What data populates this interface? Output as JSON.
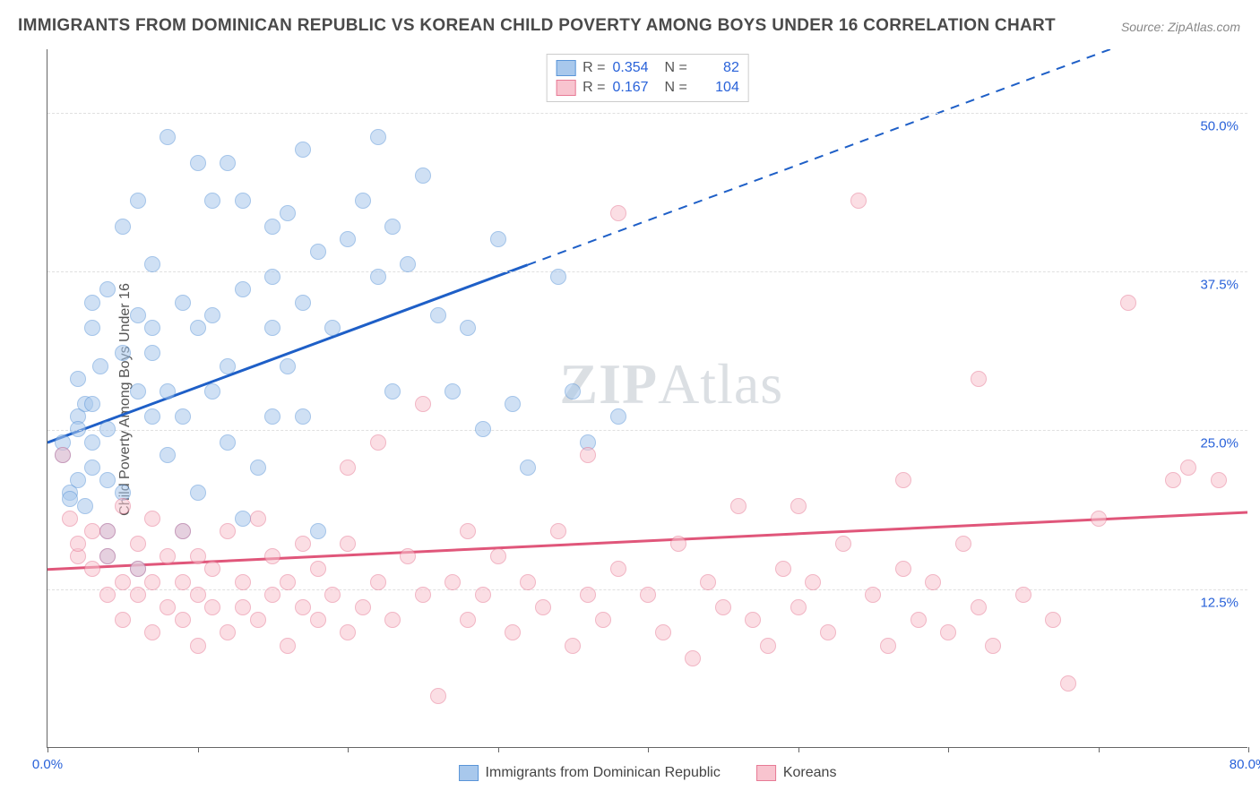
{
  "title": "IMMIGRANTS FROM DOMINICAN REPUBLIC VS KOREAN CHILD POVERTY AMONG BOYS UNDER 16 CORRELATION CHART",
  "source": "Source: ZipAtlas.com",
  "ylabel": "Child Poverty Among Boys Under 16",
  "watermark_a": "ZIP",
  "watermark_b": "Atlas",
  "chart": {
    "type": "scatter",
    "background_color": "#ffffff",
    "grid_color": "#e0e0e0",
    "axis_color": "#666666",
    "tick_label_color": "#2962d9",
    "xlim": [
      0,
      80
    ],
    "ylim": [
      0,
      55
    ],
    "xticks": [
      0,
      10,
      20,
      30,
      40,
      50,
      60,
      70,
      80
    ],
    "xtick_labels_shown": {
      "0": "0.0%",
      "80": "80.0%"
    },
    "yticks": [
      12.5,
      25.0,
      37.5,
      50.0
    ],
    "ytick_labels": [
      "12.5%",
      "25.0%",
      "37.5%",
      "50.0%"
    ],
    "marker_radius": 9,
    "marker_opacity": 0.55,
    "series": [
      {
        "name": "Immigrants from Dominican Republic",
        "short": "dominican",
        "fill": "#a8c8ec",
        "stroke": "#5a95d8",
        "R": "0.354",
        "N": "82",
        "trend": {
          "color": "#1e5fc7",
          "width": 3,
          "x1": 0,
          "y1": 24,
          "x2_solid": 32,
          "y2_solid": 38,
          "x2_dash": 80,
          "y2_dash": 59
        },
        "points": [
          [
            1,
            23
          ],
          [
            1,
            24
          ],
          [
            1.5,
            20
          ],
          [
            1.5,
            19.5
          ],
          [
            2,
            26
          ],
          [
            2,
            21
          ],
          [
            2,
            25
          ],
          [
            2,
            29
          ],
          [
            2.5,
            19
          ],
          [
            2.5,
            27
          ],
          [
            3,
            22
          ],
          [
            3,
            24
          ],
          [
            3,
            27
          ],
          [
            3,
            33
          ],
          [
            3,
            35
          ],
          [
            3.5,
            30
          ],
          [
            4,
            15
          ],
          [
            4,
            17
          ],
          [
            4,
            21
          ],
          [
            4,
            25
          ],
          [
            4,
            36
          ],
          [
            5,
            20
          ],
          [
            5,
            31
          ],
          [
            5,
            41
          ],
          [
            6,
            14
          ],
          [
            6,
            28
          ],
          [
            6,
            34
          ],
          [
            6,
            43
          ],
          [
            7,
            26
          ],
          [
            7,
            31
          ],
          [
            7,
            33
          ],
          [
            7,
            38
          ],
          [
            8,
            23
          ],
          [
            8,
            28
          ],
          [
            8,
            48
          ],
          [
            9,
            17
          ],
          [
            9,
            26
          ],
          [
            9,
            35
          ],
          [
            10,
            20
          ],
          [
            10,
            33
          ],
          [
            10,
            46
          ],
          [
            11,
            28
          ],
          [
            11,
            34
          ],
          [
            11,
            43
          ],
          [
            12,
            24
          ],
          [
            12,
            30
          ],
          [
            12,
            46
          ],
          [
            13,
            18
          ],
          [
            13,
            36
          ],
          [
            13,
            43
          ],
          [
            14,
            22
          ],
          [
            15,
            26
          ],
          [
            15,
            33
          ],
          [
            15,
            37
          ],
          [
            15,
            41
          ],
          [
            16,
            30
          ],
          [
            16,
            42
          ],
          [
            17,
            26
          ],
          [
            17,
            35
          ],
          [
            17,
            47
          ],
          [
            18,
            17
          ],
          [
            18,
            39
          ],
          [
            19,
            33
          ],
          [
            20,
            40
          ],
          [
            21,
            43
          ],
          [
            22,
            37
          ],
          [
            22,
            48
          ],
          [
            23,
            28
          ],
          [
            23,
            41
          ],
          [
            24,
            38
          ],
          [
            25,
            45
          ],
          [
            26,
            34
          ],
          [
            27,
            28
          ],
          [
            28,
            33
          ],
          [
            29,
            25
          ],
          [
            30,
            40
          ],
          [
            31,
            27
          ],
          [
            32,
            22
          ],
          [
            34,
            37
          ],
          [
            35,
            28
          ],
          [
            36,
            24
          ],
          [
            38,
            26
          ]
        ]
      },
      {
        "name": "Koreans",
        "short": "korean",
        "fill": "#f8c4cf",
        "stroke": "#e77a95",
        "R": "0.167",
        "N": "104",
        "trend": {
          "color": "#e0567a",
          "width": 3,
          "x1": 0,
          "y1": 14,
          "x2_solid": 80,
          "y2_solid": 18.5,
          "x2_dash": 80,
          "y2_dash": 18.5
        },
        "points": [
          [
            1,
            23
          ],
          [
            1.5,
            18
          ],
          [
            2,
            15
          ],
          [
            2,
            16
          ],
          [
            3,
            14
          ],
          [
            3,
            17
          ],
          [
            4,
            12
          ],
          [
            4,
            15
          ],
          [
            4,
            17
          ],
          [
            5,
            10
          ],
          [
            5,
            13
          ],
          [
            5,
            19
          ],
          [
            6,
            12
          ],
          [
            6,
            14
          ],
          [
            6,
            16
          ],
          [
            7,
            9
          ],
          [
            7,
            13
          ],
          [
            7,
            18
          ],
          [
            8,
            11
          ],
          [
            8,
            15
          ],
          [
            9,
            10
          ],
          [
            9,
            13
          ],
          [
            9,
            17
          ],
          [
            10,
            8
          ],
          [
            10,
            12
          ],
          [
            10,
            15
          ],
          [
            11,
            11
          ],
          [
            11,
            14
          ],
          [
            12,
            9
          ],
          [
            12,
            17
          ],
          [
            13,
            11
          ],
          [
            13,
            13
          ],
          [
            14,
            10
          ],
          [
            14,
            18
          ],
          [
            15,
            12
          ],
          [
            15,
            15
          ],
          [
            16,
            8
          ],
          [
            16,
            13
          ],
          [
            17,
            11
          ],
          [
            17,
            16
          ],
          [
            18,
            10
          ],
          [
            18,
            14
          ],
          [
            19,
            12
          ],
          [
            20,
            9
          ],
          [
            20,
            16
          ],
          [
            20,
            22
          ],
          [
            21,
            11
          ],
          [
            22,
            13
          ],
          [
            22,
            24
          ],
          [
            23,
            10
          ],
          [
            24,
            15
          ],
          [
            25,
            12
          ],
          [
            25,
            27
          ],
          [
            26,
            4
          ],
          [
            27,
            13
          ],
          [
            28,
            10
          ],
          [
            28,
            17
          ],
          [
            29,
            12
          ],
          [
            30,
            15
          ],
          [
            31,
            9
          ],
          [
            32,
            13
          ],
          [
            33,
            11
          ],
          [
            34,
            17
          ],
          [
            35,
            8
          ],
          [
            36,
            12
          ],
          [
            36,
            23
          ],
          [
            37,
            10
          ],
          [
            38,
            14
          ],
          [
            38,
            42
          ],
          [
            40,
            12
          ],
          [
            41,
            9
          ],
          [
            42,
            16
          ],
          [
            43,
            7
          ],
          [
            44,
            13
          ],
          [
            45,
            11
          ],
          [
            46,
            19
          ],
          [
            47,
            10
          ],
          [
            48,
            8
          ],
          [
            49,
            14
          ],
          [
            50,
            11
          ],
          [
            50,
            19
          ],
          [
            51,
            13
          ],
          [
            52,
            9
          ],
          [
            53,
            16
          ],
          [
            54,
            43
          ],
          [
            55,
            12
          ],
          [
            56,
            8
          ],
          [
            57,
            14
          ],
          [
            57,
            21
          ],
          [
            58,
            10
          ],
          [
            59,
            13
          ],
          [
            60,
            9
          ],
          [
            61,
            16
          ],
          [
            62,
            11
          ],
          [
            62,
            29
          ],
          [
            63,
            8
          ],
          [
            65,
            12
          ],
          [
            67,
            10
          ],
          [
            68,
            5
          ],
          [
            70,
            18
          ],
          [
            72,
            35
          ],
          [
            75,
            21
          ],
          [
            76,
            22
          ],
          [
            78,
            21
          ]
        ]
      }
    ]
  },
  "legend_bottom": [
    {
      "swatch_fill": "#a8c8ec",
      "swatch_stroke": "#5a95d8",
      "label": "Immigrants from Dominican Republic"
    },
    {
      "swatch_fill": "#f8c4cf",
      "swatch_stroke": "#e77a95",
      "label": "Koreans"
    }
  ]
}
